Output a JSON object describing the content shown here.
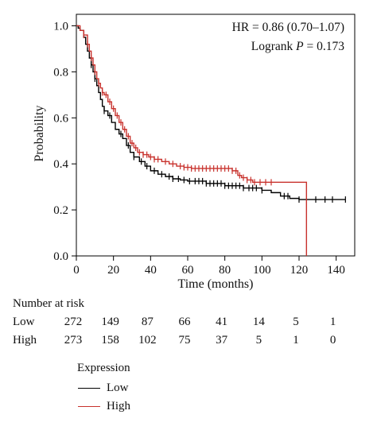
{
  "chart_data": {
    "type": "line",
    "subtype": "kaplan-meier",
    "xlabel": "Time (months)",
    "ylabel": "Probability",
    "xlim": [
      0,
      150
    ],
    "ylim": [
      0,
      1.05
    ],
    "xticks": [
      0,
      20,
      40,
      60,
      80,
      100,
      120,
      140
    ],
    "yticks": [
      0.0,
      0.2,
      0.4,
      0.6,
      0.8,
      1.0
    ],
    "grid": false,
    "annotations": {
      "hr": "HR = 0.86 (0.70–1.07)",
      "logrank_prefix": "Logrank ",
      "logrank_p": "P",
      "logrank_value": " = 0.173"
    },
    "series": [
      {
        "name": "Low",
        "color": "#000000",
        "steps": [
          [
            0,
            1.0
          ],
          [
            1,
            0.99
          ],
          [
            2,
            0.98
          ],
          [
            4,
            0.95
          ],
          [
            5,
            0.92
          ],
          [
            6,
            0.89
          ],
          [
            7,
            0.86
          ],
          [
            8,
            0.83
          ],
          [
            9,
            0.8
          ],
          [
            10,
            0.77
          ],
          [
            11,
            0.74
          ],
          [
            12,
            0.71
          ],
          [
            13,
            0.68
          ],
          [
            14,
            0.65
          ],
          [
            15,
            0.63
          ],
          [
            17,
            0.61
          ],
          [
            19,
            0.58
          ],
          [
            21,
            0.55
          ],
          [
            23,
            0.53
          ],
          [
            25,
            0.51
          ],
          [
            27,
            0.48
          ],
          [
            29,
            0.45
          ],
          [
            31,
            0.43
          ],
          [
            34,
            0.41
          ],
          [
            37,
            0.39
          ],
          [
            40,
            0.37
          ],
          [
            44,
            0.355
          ],
          [
            48,
            0.345
          ],
          [
            52,
            0.335
          ],
          [
            56,
            0.33
          ],
          [
            60,
            0.325
          ],
          [
            70,
            0.315
          ],
          [
            80,
            0.305
          ],
          [
            90,
            0.295
          ],
          [
            100,
            0.285
          ],
          [
            105,
            0.275
          ],
          [
            110,
            0.26
          ],
          [
            115,
            0.25
          ],
          [
            120,
            0.245
          ],
          [
            145,
            0.245
          ]
        ],
        "censor": [
          8,
          10,
          15,
          18,
          24,
          28,
          31,
          35,
          38,
          42,
          46,
          50,
          52,
          55,
          58,
          61,
          64,
          66,
          68,
          70,
          72,
          74,
          76,
          78,
          80,
          82,
          84,
          86,
          88,
          90,
          93,
          95,
          97,
          100,
          112,
          114,
          120,
          129,
          134,
          138,
          145
        ]
      },
      {
        "name": "High",
        "color": "#c8322d",
        "steps": [
          [
            0,
            1.0
          ],
          [
            2,
            0.98
          ],
          [
            4,
            0.96
          ],
          [
            6,
            0.92
          ],
          [
            7,
            0.89
          ],
          [
            8,
            0.86
          ],
          [
            9,
            0.83
          ],
          [
            10,
            0.8
          ],
          [
            11,
            0.77
          ],
          [
            12,
            0.75
          ],
          [
            13,
            0.73
          ],
          [
            14,
            0.71
          ],
          [
            15,
            0.7
          ],
          [
            17,
            0.67
          ],
          [
            19,
            0.64
          ],
          [
            21,
            0.61
          ],
          [
            23,
            0.58
          ],
          [
            25,
            0.55
          ],
          [
            27,
            0.52
          ],
          [
            29,
            0.49
          ],
          [
            31,
            0.47
          ],
          [
            33,
            0.45
          ],
          [
            36,
            0.44
          ],
          [
            39,
            0.43
          ],
          [
            42,
            0.42
          ],
          [
            46,
            0.41
          ],
          [
            50,
            0.4
          ],
          [
            54,
            0.39
          ],
          [
            58,
            0.385
          ],
          [
            62,
            0.38
          ],
          [
            80,
            0.38
          ],
          [
            84,
            0.37
          ],
          [
            87,
            0.35
          ],
          [
            89,
            0.34
          ],
          [
            92,
            0.33
          ],
          [
            95,
            0.32
          ],
          [
            124,
            0.32
          ],
          [
            124,
            0.0
          ]
        ],
        "censor": [
          4,
          6,
          8,
          10,
          12,
          14,
          16,
          18,
          20,
          22,
          24,
          26,
          28,
          30,
          32,
          34,
          36,
          38,
          40,
          42,
          44,
          48,
          52,
          56,
          58,
          60,
          62,
          64,
          66,
          68,
          70,
          72,
          74,
          76,
          78,
          80,
          82,
          84,
          86,
          88,
          90,
          92,
          94,
          96,
          99,
          102,
          105
        ]
      }
    ],
    "risk_table": {
      "title": "Number at risk",
      "times": [
        0,
        20,
        40,
        60,
        80,
        100,
        120,
        140
      ],
      "rows": [
        {
          "label": "Low",
          "values": [
            272,
            149,
            87,
            66,
            41,
            14,
            5,
            1
          ]
        },
        {
          "label": "High",
          "values": [
            273,
            158,
            102,
            75,
            37,
            5,
            1,
            0
          ]
        }
      ]
    },
    "legend": {
      "title": "Expression",
      "placement": "bottom-left",
      "entries": [
        {
          "label": "Low",
          "color": "#000000"
        },
        {
          "label": "High",
          "color": "#c8322d"
        }
      ]
    }
  }
}
